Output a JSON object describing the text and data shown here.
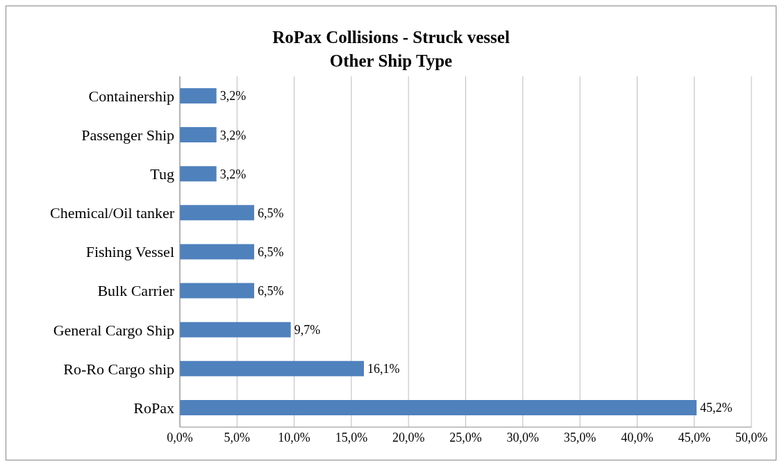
{
  "chart_data": {
    "type": "bar",
    "orientation": "horizontal",
    "title": "RoPax Collisions - Struck vessel\nOther Ship Type",
    "categories": [
      "Containership",
      "Passenger Ship",
      "Tug",
      "Chemical/Oil tanker",
      "Fishing Vessel",
      "Bulk Carrier",
      "General Cargo Ship",
      "Ro-Ro Cargo ship",
      "RoPax"
    ],
    "values": [
      3.2,
      3.2,
      3.2,
      6.5,
      6.5,
      6.5,
      9.7,
      16.1,
      45.2
    ],
    "value_labels": [
      "3,2%",
      "3,2%",
      "3,2%",
      "6,5%",
      "6,5%",
      "6,5%",
      "9,7%",
      "16,1%",
      "45,2%"
    ],
    "color": "#4f81bd",
    "xlim": [
      0,
      50
    ],
    "xticks": [
      {
        "value": 0,
        "label": "0,0%"
      },
      {
        "value": 5,
        "label": "5,0%"
      },
      {
        "value": 10,
        "label": "10,0%"
      },
      {
        "value": 15,
        "label": "15,0%"
      },
      {
        "value": 20,
        "label": "20,0%"
      },
      {
        "value": 25,
        "label": "25,0%"
      },
      {
        "value": 30,
        "label": "30,0%"
      },
      {
        "value": 35,
        "label": "35,0%"
      },
      {
        "value": 40,
        "label": "40,0%"
      },
      {
        "value": 45,
        "label": "45,0%"
      },
      {
        "value": 50,
        "label": "50,0%"
      }
    ],
    "grid": "x"
  }
}
